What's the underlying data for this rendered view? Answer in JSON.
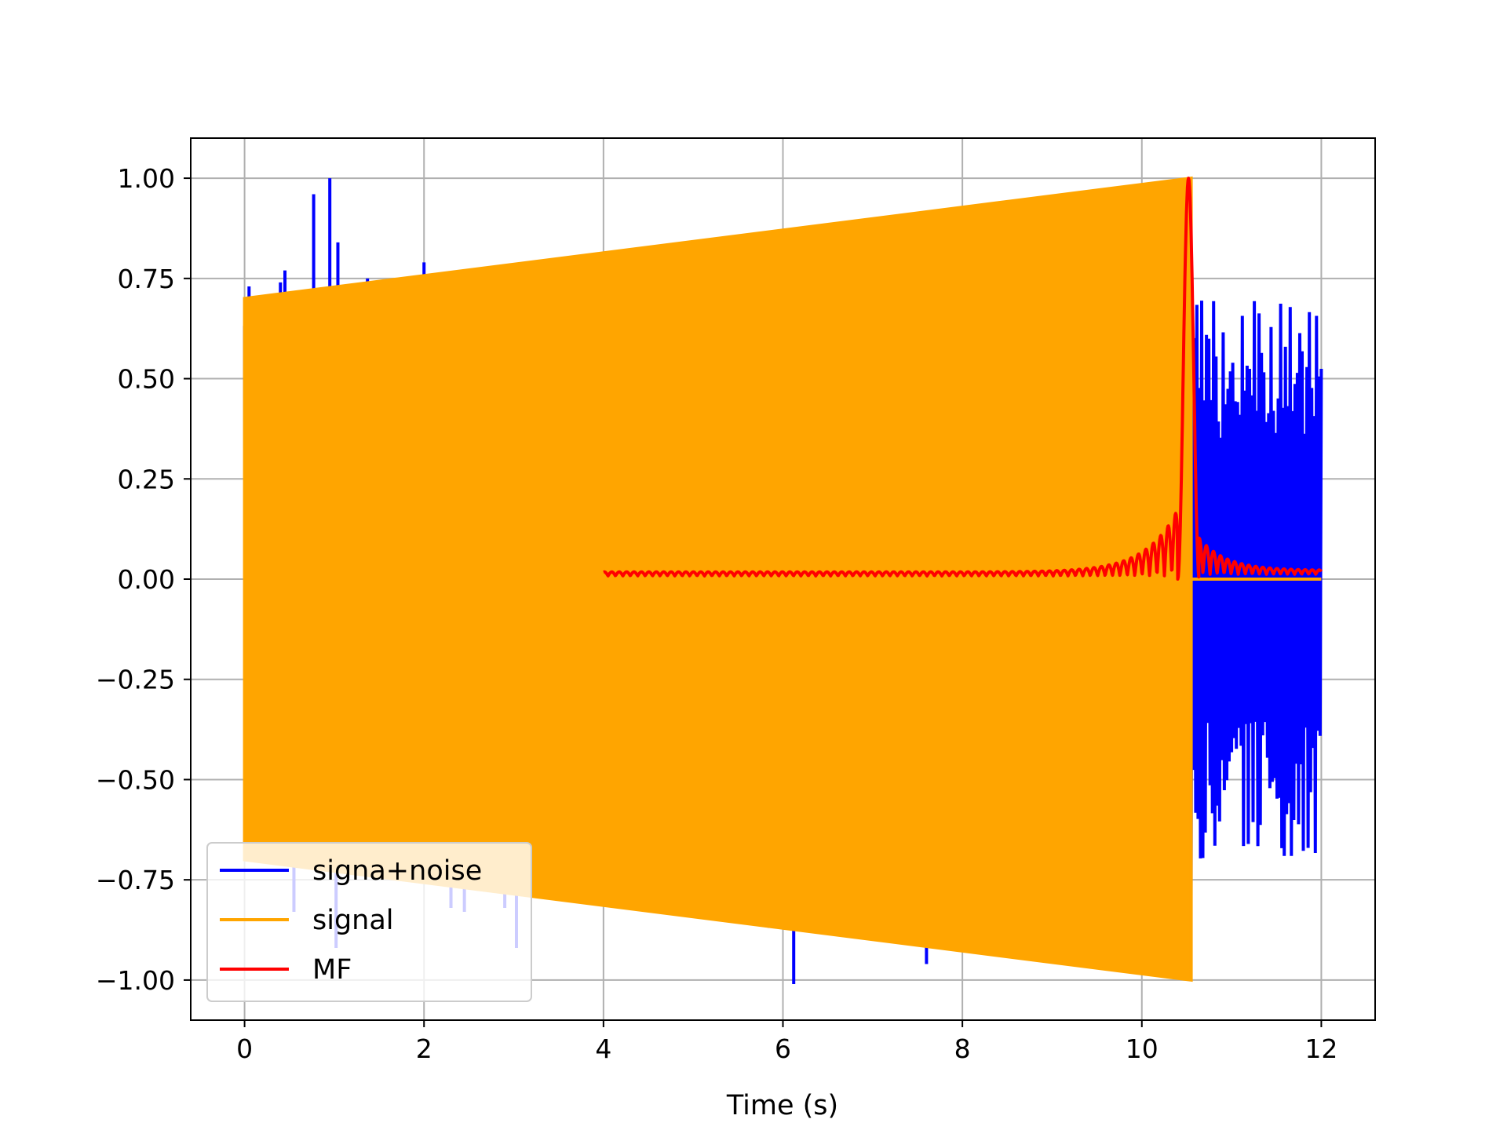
{
  "chart_data": {
    "type": "line",
    "title": "",
    "xlabel": "Time (s)",
    "ylabel": "",
    "xlim": [
      -0.6,
      12.6
    ],
    "ylim": [
      -1.1,
      1.1
    ],
    "x_ticks": [
      0,
      2,
      4,
      6,
      8,
      10,
      12
    ],
    "x_tick_labels": [
      "0",
      "2",
      "4",
      "6",
      "8",
      "10",
      "12"
    ],
    "y_ticks": [
      1.0,
      0.75,
      0.5,
      0.25,
      0.0,
      -0.25,
      -0.5,
      -0.75,
      -1.0
    ],
    "y_tick_labels": [
      "1.00",
      "0.75",
      "0.50",
      "0.25",
      "0.00",
      "−0.25",
      "−0.50",
      "−0.75",
      "−1.00"
    ],
    "grid": true,
    "legend_position": "lower-left",
    "series": [
      {
        "name": "signa+noise",
        "color": "#0000ff",
        "x_range": [
          0,
          12
        ],
        "spikes": [
          {
            "x": 0.05,
            "y": 0.73
          },
          {
            "x": 0.4,
            "y": 0.74
          },
          {
            "x": 0.45,
            "y": 0.77
          },
          {
            "x": 0.77,
            "y": 0.96
          },
          {
            "x": 0.95,
            "y": 1.0
          },
          {
            "x": 1.04,
            "y": 0.84
          },
          {
            "x": 1.37,
            "y": 0.75
          },
          {
            "x": 1.97,
            "y": 0.74
          },
          {
            "x": 2.0,
            "y": 0.79
          },
          {
            "x": 2.3,
            "y": 0.76
          },
          {
            "x": 3.4,
            "y": 0.76
          },
          {
            "x": 3.5,
            "y": 0.79
          },
          {
            "x": 3.57,
            "y": 0.78
          },
          {
            "x": 4.12,
            "y": 0.78
          },
          {
            "x": 5.87,
            "y": 0.86
          },
          {
            "x": 0.55,
            "y": -0.83
          },
          {
            "x": 1.02,
            "y": -0.92
          },
          {
            "x": 2.3,
            "y": -0.82
          },
          {
            "x": 2.45,
            "y": -0.83
          },
          {
            "x": 2.9,
            "y": -0.82
          },
          {
            "x": 3.03,
            "y": -0.92
          },
          {
            "x": 5.85,
            "y": -0.87
          },
          {
            "x": 6.12,
            "y": -1.01
          },
          {
            "x": 7.6,
            "y": -0.96
          }
        ]
      },
      {
        "name": "signal",
        "color": "#ffa500",
        "x_range": [
          0,
          10.55
        ],
        "envelope_start": 0.7,
        "envelope_end": 1.0
      },
      {
        "name": "MF",
        "color": "#ff0000",
        "x_range": [
          4,
          12
        ],
        "peak_x": 10.52,
        "peak_y": 1.0
      }
    ]
  }
}
